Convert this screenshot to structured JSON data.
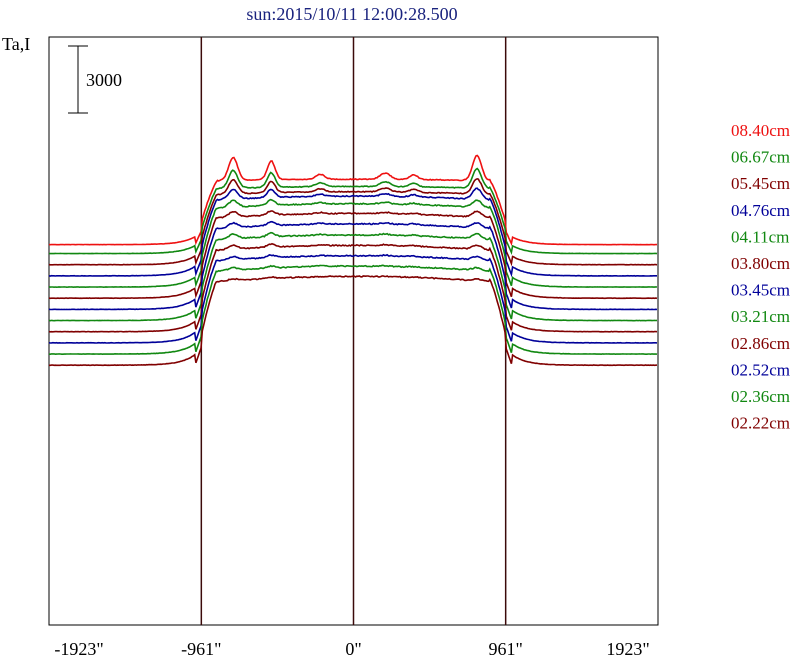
{
  "chart_data": {
    "type": "line",
    "title": "sun:2015/10/11 12:00:28.500",
    "ylabel": "Ta,I",
    "scale_bar_label": "3000",
    "x_ticks": [
      "-1923\"",
      "-961\"",
      "0\"",
      "961\"",
      "1923\""
    ],
    "x_tick_values": [
      -1923,
      -961,
      0,
      961,
      1923
    ],
    "xlim": [
      -1923,
      1923
    ],
    "vertical_lines_at": [
      -961,
      0,
      961
    ],
    "grid": false,
    "legend_position": "right",
    "note": "stacked",
    "series": [
      {
        "name": "08.40cm",
        "color": "#ee1111",
        "baseline": 600,
        "peak": 5100,
        "limb": 2.0
      },
      {
        "name": "06.67cm",
        "color": "#118811",
        "baseline": 200,
        "peak": 4500,
        "limb": 1.5
      },
      {
        "name": "05.45cm",
        "color": "#800000",
        "baseline": -300,
        "peak": 4100,
        "limb": 1.1
      },
      {
        "name": "04.76cm",
        "color": "#000099",
        "baseline": -800,
        "peak": 3700,
        "limb": 0.7
      },
      {
        "name": "04.11cm",
        "color": "#118811",
        "baseline": -1300,
        "peak": 3200,
        "limb": 0.45
      },
      {
        "name": "03.80cm",
        "color": "#800000",
        "baseline": -1800,
        "peak": 2700,
        "limb": 0.35
      },
      {
        "name": "03.45cm",
        "color": "#000099",
        "baseline": -2300,
        "peak": 2200,
        "limb": 0.3
      },
      {
        "name": "03.21cm",
        "color": "#118811",
        "baseline": -2800,
        "peak": 1700,
        "limb": 0.3
      },
      {
        "name": "02.86cm",
        "color": "#800000",
        "baseline": -3300,
        "peak": 1200,
        "limb": 0.25
      },
      {
        "name": "02.52cm",
        "color": "#000099",
        "baseline": -3800,
        "peak": 700,
        "limb": 0.2
      },
      {
        "name": "02.36cm",
        "color": "#118811",
        "baseline": -4300,
        "peak": 200,
        "limb": 0.15
      },
      {
        "name": "02.22cm",
        "color": "#800000",
        "baseline": -4800,
        "peak": -300,
        "limb": 0.1
      }
    ]
  }
}
